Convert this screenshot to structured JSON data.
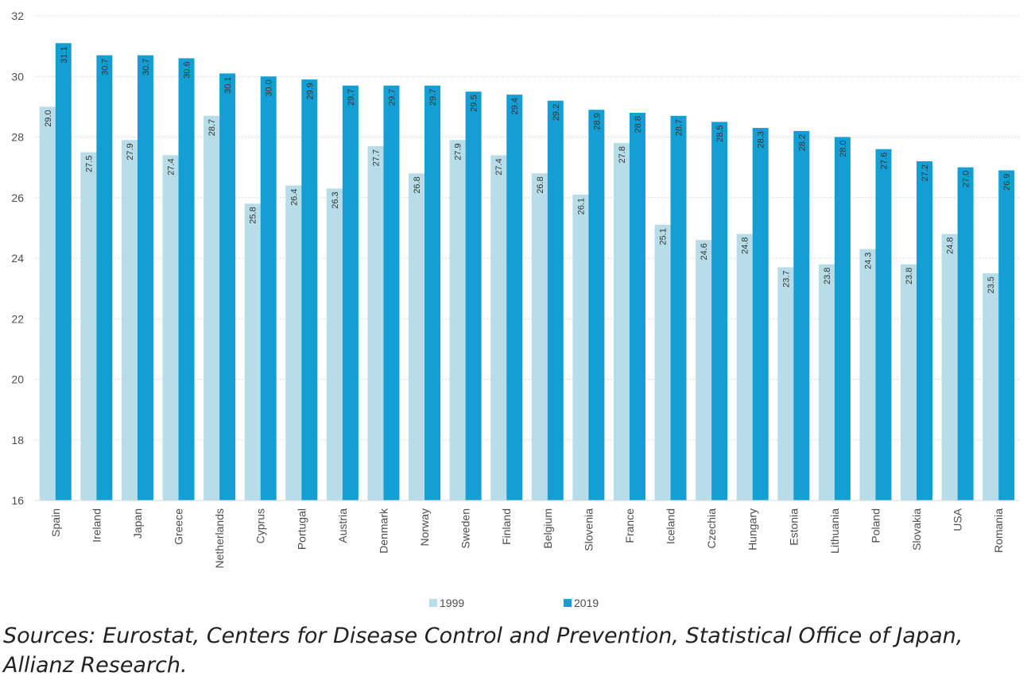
{
  "chart_data": {
    "type": "bar",
    "categories": [
      "Spain",
      "Ireland",
      "Japan",
      "Greece",
      "Netherlands",
      "Cyprus",
      "Portugal",
      "Austria",
      "Denmark",
      "Norway",
      "Sweden",
      "Finland",
      "Belgium",
      "Slovenia",
      "France",
      "Iceland",
      "Czechia",
      "Hungary",
      "Estonia",
      "Lithuania",
      "Poland",
      "Slovakia",
      "USA",
      "Romania"
    ],
    "series": [
      {
        "name": "1999",
        "color": "#b6dde8",
        "values": [
          29.0,
          27.5,
          27.9,
          27.4,
          28.7,
          25.8,
          26.4,
          26.3,
          27.7,
          26.8,
          27.9,
          27.4,
          26.8,
          26.1,
          27.8,
          25.1,
          24.6,
          24.8,
          23.7,
          23.8,
          24.3,
          23.8,
          24.8,
          23.5
        ]
      },
      {
        "name": "2019",
        "color": "#139fd4",
        "values": [
          31.1,
          30.7,
          30.7,
          30.6,
          30.1,
          30.0,
          29.9,
          29.7,
          29.7,
          29.7,
          29.5,
          29.4,
          29.2,
          28.9,
          28.8,
          28.7,
          28.5,
          28.3,
          28.2,
          28.0,
          27.6,
          27.2,
          27.0,
          26.9
        ]
      }
    ],
    "ylim": [
      16,
      32
    ],
    "yticks": [
      16,
      18,
      20,
      22,
      24,
      26,
      28,
      30,
      32
    ],
    "grid": true,
    "legend_position": "bottom",
    "title": "",
    "xlabel": "",
    "ylabel": ""
  },
  "source_text": "Sources: Eurostat, Centers for Disease Control and Prevention, Statistical Office of Japan, Allianz Research."
}
